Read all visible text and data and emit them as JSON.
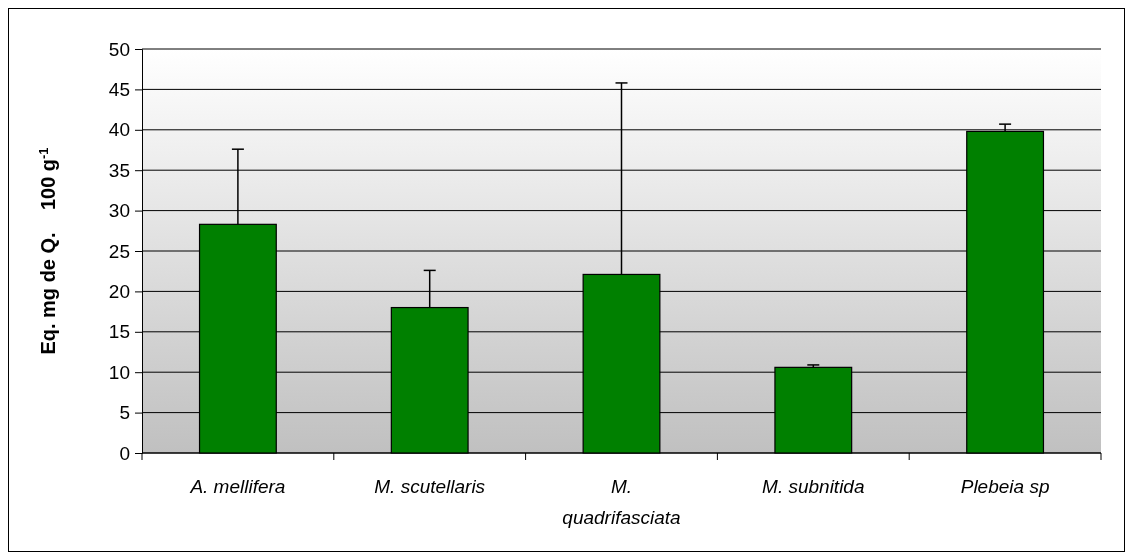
{
  "chart_data": {
    "type": "bar",
    "ylabel": "Eq. mg de Q.    100 g$^{-1}$",
    "categories": [
      "A. mellifera",
      "M. scutellaris",
      "M. quadrifasciata",
      "M. subnitida",
      "Plebeia sp"
    ],
    "values": [
      28.3,
      18.0,
      22.1,
      10.6,
      39.8
    ],
    "errors": [
      [
        28.3,
        37.6
      ],
      [
        18.0,
        22.6
      ],
      [
        22.1,
        45.8
      ],
      [
        10.6,
        10.9
      ],
      [
        39.8,
        40.7
      ]
    ],
    "color": "#008000",
    "ylim": [
      0,
      50
    ],
    "yticks": [
      0,
      5,
      10,
      15,
      20,
      25,
      30,
      35,
      40,
      45,
      50
    ],
    "grid": "y"
  }
}
